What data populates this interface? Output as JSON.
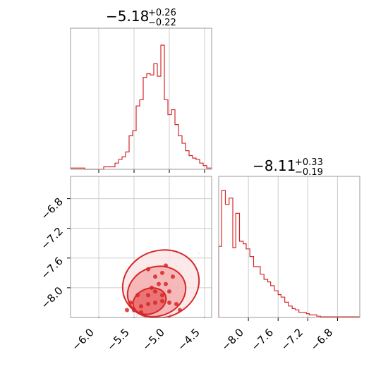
{
  "chart_data": [
    {
      "type": "histogram",
      "panel": "marginal-x",
      "title": {
        "median": "−5.18",
        "plus": "+0.26",
        "minus": "−0.22"
      },
      "xlim": [
        -6.4,
        -4.4
      ],
      "xticks": [
        -6.0,
        -5.5,
        -5.0,
        -4.5
      ],
      "bins": [
        {
          "x0": -6.4,
          "x1": -6.2,
          "count": 0.01
        },
        {
          "x0": -6.2,
          "x1": -5.93,
          "count": 0.0
        },
        {
          "x0": -5.93,
          "x1": -5.77,
          "count": 0.02
        },
        {
          "x0": -5.77,
          "x1": -5.72,
          "count": 0.05
        },
        {
          "x0": -5.72,
          "x1": -5.67,
          "count": 0.08
        },
        {
          "x0": -5.67,
          "x1": -5.62,
          "count": 0.1
        },
        {
          "x0": -5.62,
          "x1": -5.57,
          "count": 0.14
        },
        {
          "x0": -5.57,
          "x1": -5.52,
          "count": 0.27
        },
        {
          "x0": -5.52,
          "x1": -5.47,
          "count": 0.31
        },
        {
          "x0": -5.47,
          "x1": -5.42,
          "count": 0.51
        },
        {
          "x0": -5.42,
          "x1": -5.37,
          "count": 0.56
        },
        {
          "x0": -5.37,
          "x1": -5.32,
          "count": 0.74
        },
        {
          "x0": -5.32,
          "x1": -5.27,
          "count": 0.77
        },
        {
          "x0": -5.27,
          "x1": -5.22,
          "count": 0.76
        },
        {
          "x0": -5.22,
          "x1": -5.17,
          "count": 0.85
        },
        {
          "x0": -5.17,
          "x1": -5.12,
          "count": 0.75
        },
        {
          "x0": -5.12,
          "x1": -5.07,
          "count": 1.0
        },
        {
          "x0": -5.07,
          "x1": -5.02,
          "count": 0.56
        },
        {
          "x0": -5.02,
          "x1": -4.97,
          "count": 0.44
        },
        {
          "x0": -4.97,
          "x1": -4.92,
          "count": 0.48
        },
        {
          "x0": -4.92,
          "x1": -4.87,
          "count": 0.36
        },
        {
          "x0": -4.87,
          "x1": -4.82,
          "count": 0.27
        },
        {
          "x0": -4.82,
          "x1": -4.77,
          "count": 0.21
        },
        {
          "x0": -4.77,
          "x1": -4.72,
          "count": 0.15
        },
        {
          "x0": -4.72,
          "x1": -4.67,
          "count": 0.11
        },
        {
          "x0": -4.67,
          "x1": -4.62,
          "count": 0.09
        },
        {
          "x0": -4.62,
          "x1": -4.57,
          "count": 0.08
        },
        {
          "x0": -4.57,
          "x1": -4.52,
          "count": 0.05
        },
        {
          "x0": -4.52,
          "x1": -4.47,
          "count": 0.03
        },
        {
          "x0": -4.47,
          "x1": -4.4,
          "count": 0.01
        }
      ],
      "color": "#d62728",
      "grid": true
    },
    {
      "type": "scatter",
      "panel": "joint",
      "xlim": [
        -6.4,
        -4.4
      ],
      "ylim": [
        -8.4,
        -6.5
      ],
      "xticks": [
        -6.0,
        -5.5,
        -5.0,
        -4.5
      ],
      "yticks": [
        -6.8,
        -7.2,
        -7.6,
        -8.0
      ],
      "core_points": [
        [
          -5.55,
          -8.2
        ],
        [
          -5.4,
          -8.25
        ],
        [
          -5.3,
          -8.22
        ],
        [
          -5.2,
          -8.2
        ],
        [
          -5.1,
          -8.18
        ],
        [
          -5.0,
          -8.2
        ],
        [
          -4.9,
          -8.22
        ],
        [
          -5.45,
          -8.1
        ],
        [
          -5.3,
          -8.1
        ],
        [
          -5.2,
          -8.05
        ],
        [
          -5.1,
          -8.1
        ],
        [
          -5.0,
          -8.05
        ],
        [
          -5.25,
          -8.0
        ],
        [
          -5.15,
          -7.95
        ],
        [
          -5.05,
          -7.95
        ],
        [
          -5.2,
          -7.85
        ],
        [
          -5.1,
          -7.8
        ],
        [
          -5.05,
          -7.7
        ],
        [
          -5.3,
          -7.75
        ],
        [
          -4.95,
          -7.85
        ],
        [
          -5.5,
          -8.3
        ],
        [
          -5.4,
          -8.33
        ],
        [
          -5.6,
          -8.3
        ],
        [
          -4.85,
          -8.3
        ]
      ],
      "contours": [
        {
          "level": 0.39,
          "center": [
            -5.28,
            -8.18
          ],
          "rx": 0.24,
          "ry": 0.17
        },
        {
          "level": 0.86,
          "center": [
            -5.18,
            -8.05
          ],
          "rx": 0.42,
          "ry": 0.33
        },
        {
          "level": 0.99,
          "center": [
            -5.12,
            -7.95
          ],
          "rx": 0.55,
          "ry": 0.45
        }
      ],
      "color": "#d62728",
      "grid": true
    },
    {
      "type": "histogram",
      "panel": "marginal-y",
      "title": {
        "median": "−8.11",
        "plus": "+0.33",
        "minus": "−0.19"
      },
      "xlim": [
        -8.4,
        -6.5
      ],
      "xticks": [
        -8.0,
        -7.6,
        -7.2,
        -6.8
      ],
      "bins": [
        {
          "x0": -8.4,
          "x1": -8.36,
          "count": 0.56
        },
        {
          "x0": -8.36,
          "x1": -8.31,
          "count": 1.0
        },
        {
          "x0": -8.31,
          "x1": -8.26,
          "count": 0.89
        },
        {
          "x0": -8.26,
          "x1": -8.21,
          "count": 0.94
        },
        {
          "x0": -8.21,
          "x1": -8.17,
          "count": 0.55
        },
        {
          "x0": -8.17,
          "x1": -8.12,
          "count": 0.82
        },
        {
          "x0": -8.12,
          "x1": -8.07,
          "count": 0.6
        },
        {
          "x0": -8.07,
          "x1": -8.03,
          "count": 0.58
        },
        {
          "x0": -8.03,
          "x1": -7.98,
          "count": 0.54
        },
        {
          "x0": -7.98,
          "x1": -7.93,
          "count": 0.48
        },
        {
          "x0": -7.93,
          "x1": -7.89,
          "count": 0.4
        },
        {
          "x0": -7.89,
          "x1": -7.84,
          "count": 0.4
        },
        {
          "x0": -7.84,
          "x1": -7.79,
          "count": 0.34
        },
        {
          "x0": -7.79,
          "x1": -7.74,
          "count": 0.3
        },
        {
          "x0": -7.74,
          "x1": -7.7,
          "count": 0.28
        },
        {
          "x0": -7.7,
          "x1": -7.65,
          "count": 0.25
        },
        {
          "x0": -7.65,
          "x1": -7.6,
          "count": 0.21
        },
        {
          "x0": -7.6,
          "x1": -7.56,
          "count": 0.18
        },
        {
          "x0": -7.56,
          "x1": -7.51,
          "count": 0.16
        },
        {
          "x0": -7.51,
          "x1": -7.46,
          "count": 0.12
        },
        {
          "x0": -7.46,
          "x1": -7.41,
          "count": 0.09
        },
        {
          "x0": -7.41,
          "x1": -7.37,
          "count": 0.07
        },
        {
          "x0": -7.37,
          "x1": -7.32,
          "count": 0.06
        },
        {
          "x0": -7.32,
          "x1": -7.27,
          "count": 0.04
        },
        {
          "x0": -7.27,
          "x1": -7.22,
          "count": 0.04
        },
        {
          "x0": -7.22,
          "x1": -7.18,
          "count": 0.03
        },
        {
          "x0": -7.18,
          "x1": -7.13,
          "count": 0.02
        },
        {
          "x0": -7.13,
          "x1": -7.08,
          "count": 0.02
        },
        {
          "x0": -7.08,
          "x1": -7.03,
          "count": 0.01
        },
        {
          "x0": -7.03,
          "x1": -6.5,
          "count": 0.005
        }
      ],
      "color": "#d62728",
      "grid": true
    }
  ]
}
